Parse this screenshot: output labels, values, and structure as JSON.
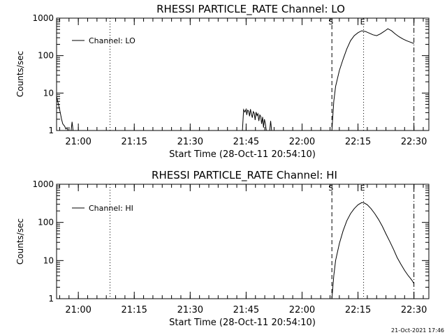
{
  "chart_data": [
    {
      "type": "line",
      "title": "RHESSI PARTICLE_RATE Channel: LO",
      "xlabel": "Start Time (28-Oct-11 20:54:10)",
      "ylabel": "Counts/sec",
      "y_scale": "log",
      "ylim": [
        1,
        1000
      ],
      "xlim": [
        "20:54:10",
        "22:34:00"
      ],
      "x_ticks": [
        "21:00",
        "21:15",
        "21:30",
        "21:45",
        "22:00",
        "22:15",
        "22:30"
      ],
      "y_ticks": [
        "1",
        "10",
        "100",
        "1000"
      ],
      "legend": {
        "position": "top-left",
        "entries": [
          "Channel: LO"
        ]
      },
      "markers": [
        {
          "label": "",
          "time": "21:08:30",
          "style": "dotted"
        },
        {
          "label": "S",
          "time": "22:08:00",
          "style": "dashed"
        },
        {
          "label": "E",
          "time": "22:16:30",
          "style": "dotted"
        },
        {
          "label": "",
          "time": "22:30:00",
          "style": "dash-dot"
        }
      ],
      "series": [
        {
          "name": "Channel: LO",
          "segments": [
            {
              "x": [
                "20:54:10",
                "20:54:40",
                "20:55:10",
                "20:55:30",
                "20:55:50",
                "20:56:20",
                "20:56:40",
                "20:57:00",
                "20:57:10"
              ],
              "y": [
                8,
                5,
                3,
                2,
                1.5,
                1.3,
                1.1,
                1.2,
                1
              ]
            },
            {
              "x": [
                "20:58:05",
                "20:58:20",
                "20:58:35"
              ],
              "y": [
                1,
                1.7,
                1
              ]
            },
            {
              "x": [
                "21:44:00",
                "21:44:20",
                "21:44:40",
                "21:45:00",
                "21:45:10",
                "21:45:25",
                "21:45:40",
                "21:45:55",
                "21:46:10",
                "21:46:25",
                "21:46:40",
                "21:46:55",
                "21:47:10",
                "21:47:25",
                "21:47:40",
                "21:47:55",
                "21:48:10",
                "21:48:25",
                "21:48:40",
                "21:48:55",
                "21:49:10",
                "21:49:25",
                "21:49:40",
                "21:49:55",
                "21:50:10",
                "21:50:25"
              ],
              "y": [
                1,
                3.6,
                3.1,
                3.7,
                2.6,
                3.5,
                3.3,
                2.4,
                3.7,
                2.7,
                2.2,
                3.2,
                2.9,
                1.9,
                3.1,
                2.5,
                2.8,
                1.8,
                2.6,
                2.4,
                1.5,
                2.3,
                1.2,
                2.0,
                1.5,
                1
              ]
            },
            {
              "x": [
                "21:51:20",
                "21:51:35",
                "21:51:50"
              ],
              "y": [
                1,
                1.8,
                1
              ]
            },
            {
              "x": [
                "22:08:00",
                "22:08:30",
                "22:09:00",
                "22:10:00",
                "22:11:00",
                "22:12:00",
                "22:13:00",
                "22:14:00",
                "22:15:00",
                "22:16:00",
                "22:17:00",
                "22:18:00",
                "22:19:00",
                "22:20:00",
                "22:21:00",
                "22:22:00",
                "22:23:00",
                "22:24:00",
                "22:25:00",
                "22:26:00",
                "22:27:00",
                "22:28:00",
                "22:29:00",
                "22:30:00"
              ],
              "y": [
                1,
                6,
                15,
                40,
                80,
                150,
                250,
                340,
                410,
                460,
                440,
                400,
                360,
                340,
                380,
                440,
                520,
                460,
                380,
                320,
                280,
                250,
                230,
                210
              ]
            }
          ]
        }
      ]
    },
    {
      "type": "line",
      "title": "RHESSI PARTICLE_RATE Channel: HI",
      "xlabel": "Start Time (28-Oct-11 20:54:10)",
      "ylabel": "Counts/sec",
      "y_scale": "log",
      "ylim": [
        1,
        1000
      ],
      "xlim": [
        "20:54:10",
        "22:34:00"
      ],
      "x_ticks": [
        "21:00",
        "21:15",
        "21:30",
        "21:45",
        "22:00",
        "22:15",
        "22:30"
      ],
      "y_ticks": [
        "1",
        "10",
        "100",
        "1000"
      ],
      "legend": {
        "position": "top-left",
        "entries": [
          "Channel: HI"
        ]
      },
      "markers": [
        {
          "label": "",
          "time": "21:08:30",
          "style": "dotted"
        },
        {
          "label": "S",
          "time": "22:08:00",
          "style": "dashed"
        },
        {
          "label": "E",
          "time": "22:16:30",
          "style": "dotted"
        },
        {
          "label": "",
          "time": "22:30:00",
          "style": "dash-dot"
        }
      ],
      "series": [
        {
          "name": "Channel: HI",
          "segments": [
            {
              "x": [
                "22:08:00",
                "22:08:30",
                "22:09:00",
                "22:10:00",
                "22:11:00",
                "22:12:00",
                "22:13:00",
                "22:14:00",
                "22:15:00",
                "22:16:00",
                "22:16:30",
                "22:17:30",
                "22:18:30",
                "22:19:30",
                "22:20:30",
                "22:21:30",
                "22:22:30",
                "22:23:30",
                "22:24:30",
                "22:25:30",
                "22:26:30",
                "22:27:30",
                "22:28:30",
                "22:29:00",
                "22:29:30",
                "22:30:00"
              ],
              "y": [
                1,
                4,
                10,
                28,
                60,
                110,
                170,
                230,
                290,
                330,
                330,
                290,
                230,
                170,
                120,
                80,
                50,
                32,
                20,
                12,
                8,
                5.5,
                4,
                3.5,
                3,
                2.5
              ]
            }
          ]
        }
      ]
    }
  ],
  "footer": {
    "timestamp": "21-Oct-2021 17:46"
  }
}
